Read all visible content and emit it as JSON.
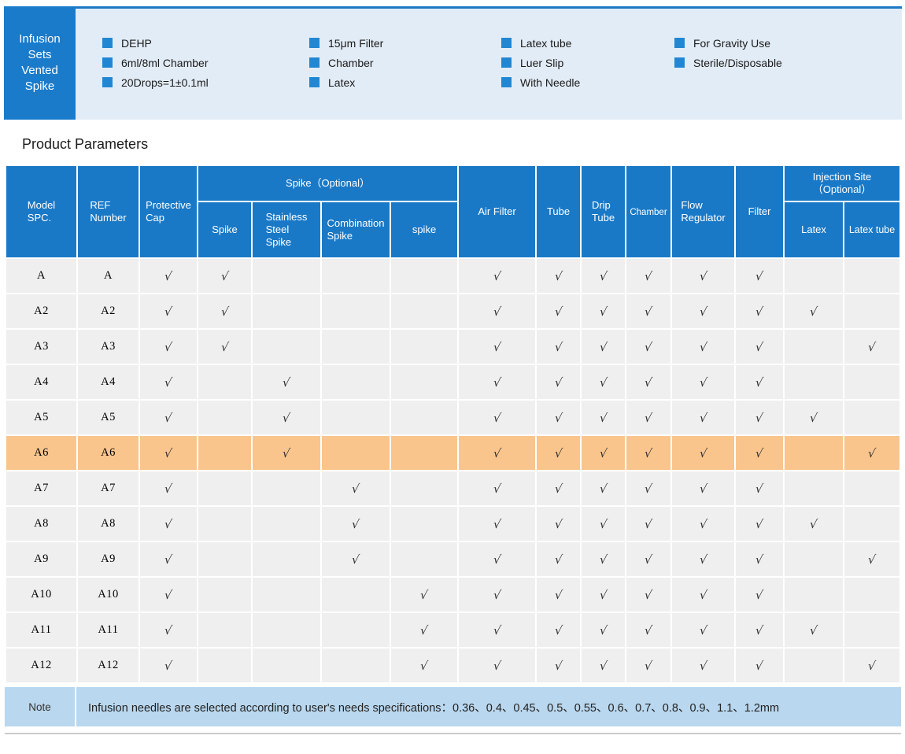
{
  "banner": {
    "title": "Infusion\nSets\nVented\nSpike",
    "feature_columns": [
      [
        "DEHP",
        "6ml/8ml Chamber",
        "20Drops=1±0.1ml"
      ],
      [
        "15μm Filter",
        "Chamber",
        "Latex"
      ],
      [
        "Latex tube",
        "Luer Slip",
        "With Needle"
      ],
      [
        "For Gravity Use",
        "Sterile/Disposable"
      ]
    ]
  },
  "section_title": "Product Parameters",
  "table": {
    "check_glyph": "√",
    "headers": {
      "model": "Model\nSPC.",
      "ref": "REF\nNumber",
      "protective_cap": "Protective\nCap",
      "spike_group": "Spike（Optional）",
      "spike": "Spike",
      "stainless_steel_spike": "Stainless\nSteel\nSpike",
      "combination_spike": "Combination\nSpike",
      "spike_lower": "spike",
      "air_filter": "Air Filter",
      "tube": "Tube",
      "drip_tube": "Drip\nTube",
      "chamber": "Chamber",
      "flow_regulator": "Flow\nRegulator",
      "filter": "Filter",
      "injection_group": "Injection Site\n（Optional）",
      "latex": "Latex",
      "latex_tube": "Latex tube"
    },
    "rows": [
      {
        "model": "A",
        "ref": "A",
        "checks": [
          1,
          1,
          0,
          0,
          0,
          1,
          1,
          1,
          1,
          1,
          1,
          0,
          0
        ],
        "highlight": false
      },
      {
        "model": "A2",
        "ref": "A2",
        "checks": [
          1,
          1,
          0,
          0,
          0,
          1,
          1,
          1,
          1,
          1,
          1,
          1,
          0
        ],
        "highlight": false
      },
      {
        "model": "A3",
        "ref": "A3",
        "checks": [
          1,
          1,
          0,
          0,
          0,
          1,
          1,
          1,
          1,
          1,
          1,
          0,
          1
        ],
        "highlight": false
      },
      {
        "model": "A4",
        "ref": "A4",
        "checks": [
          1,
          0,
          1,
          0,
          0,
          1,
          1,
          1,
          1,
          1,
          1,
          0,
          0
        ],
        "highlight": false
      },
      {
        "model": "A5",
        "ref": "A5",
        "checks": [
          1,
          0,
          1,
          0,
          0,
          1,
          1,
          1,
          1,
          1,
          1,
          1,
          0
        ],
        "highlight": false
      },
      {
        "model": "A6",
        "ref": "A6",
        "checks": [
          1,
          0,
          1,
          0,
          0,
          1,
          1,
          1,
          1,
          1,
          1,
          0,
          1
        ],
        "highlight": true
      },
      {
        "model": "A7",
        "ref": "A7",
        "checks": [
          1,
          0,
          0,
          1,
          0,
          1,
          1,
          1,
          1,
          1,
          1,
          0,
          0
        ],
        "highlight": false
      },
      {
        "model": "A8",
        "ref": "A8",
        "checks": [
          1,
          0,
          0,
          1,
          0,
          1,
          1,
          1,
          1,
          1,
          1,
          1,
          0
        ],
        "highlight": false
      },
      {
        "model": "A9",
        "ref": "A9",
        "checks": [
          1,
          0,
          0,
          1,
          0,
          1,
          1,
          1,
          1,
          1,
          1,
          0,
          1
        ],
        "highlight": false
      },
      {
        "model": "A10",
        "ref": "A10",
        "checks": [
          1,
          0,
          0,
          0,
          1,
          1,
          1,
          1,
          1,
          1,
          1,
          0,
          0
        ],
        "highlight": false
      },
      {
        "model": "A11",
        "ref": "A11",
        "checks": [
          1,
          0,
          0,
          0,
          1,
          1,
          1,
          1,
          1,
          1,
          1,
          1,
          0
        ],
        "highlight": false
      },
      {
        "model": "A12",
        "ref": "A12",
        "checks": [
          1,
          0,
          0,
          0,
          1,
          1,
          1,
          1,
          1,
          1,
          1,
          0,
          1
        ],
        "highlight": false
      }
    ]
  },
  "note": {
    "label": "Note",
    "text": "Infusion needles are selected according to user's needs specifications：0.36、0.4、0.45、0.5、0.55、0.6、0.7、0.8、0.9、1.1、1.2mm"
  },
  "colors": {
    "header_blue": "#1a79c6",
    "banner_blue": "#1a7bcb",
    "bullet_blue": "#2287d3",
    "panel_bg": "#e2ecf6",
    "row_bg": "#efefef",
    "highlight_orange": "#f9c58c",
    "note_bg": "#b9d7ee",
    "bottom_line": "#cbcbcb"
  }
}
